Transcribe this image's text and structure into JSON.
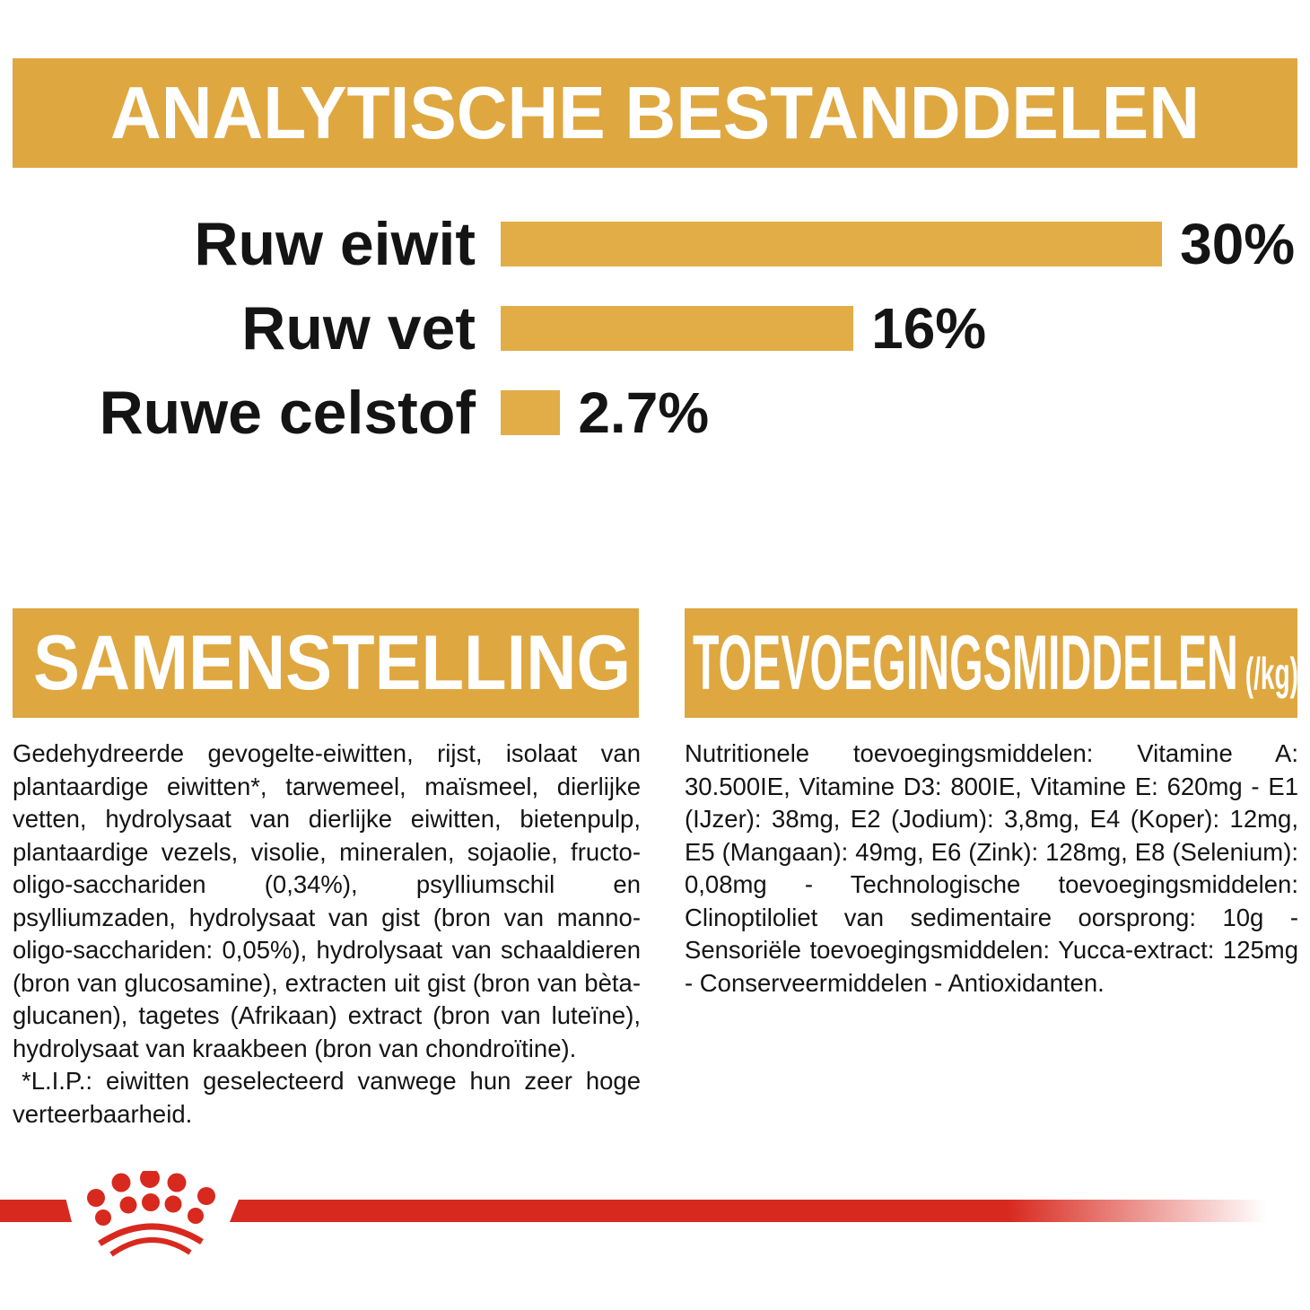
{
  "colors": {
    "banner_gold": "#DFA740",
    "bar_gold": "#E2AC47",
    "brand_red": "#D8291F",
    "text_black": "#141414",
    "background": "#FFFFFF"
  },
  "analytical": {
    "title": "ANALYTISCHE BESTANDDELEN"
  },
  "chart_data": {
    "type": "bar",
    "orientation": "horizontal",
    "title": "ANALYTISCHE BESTANDDELEN",
    "categories": [
      "Ruw eiwit",
      "Ruw vet",
      "Ruwe celstof"
    ],
    "values": [
      30,
      16,
      2.7
    ],
    "value_labels": [
      "30%",
      "16%",
      "2.7%"
    ],
    "unit": "%",
    "xlim": [
      0,
      30
    ],
    "bar_color": "#E2AC47",
    "grid": false,
    "legend": false,
    "value_label_position": "right-of-bar"
  },
  "composition": {
    "title": "SAMENSTELLING",
    "body": "Gedehydreerde gevogelte-eiwitten, rijst, isolaat van plantaardige eiwitten*, tarwemeel, maïsmeel, dierlijke vetten, hydrolysaat van dierlijke eiwitten, bietenpulp, plantaardige vezels, visolie, mineralen, sojaolie, fructo-oligo-sacchariden (0,34%), psylliumschil en psylliumzaden, hydrolysaat van gist (bron van manno-oligo-sacchariden: 0,05%), hydrolysaat van schaaldieren (bron van glucosamine), extracten uit gist (bron van bèta-glucanen), tagetes (Afrikaan) extract (bron van luteïne), hydrolysaat van kraakbeen (bron van chondroïtine).",
    "footnote": "*L.I.P.: eiwitten geselecteerd vanwege hun zeer hoge verteerbaarheid."
  },
  "additives": {
    "title": "TOEVOEGINGSMIDDELEN",
    "unit_suffix": "(/kg)",
    "body": "Nutritionele toevoegingsmiddelen: Vitamine A: 30.500IE, Vitamine D3: 800IE, Vitamine E: 620mg - E1 (IJzer): 38mg, E2 (Jodium): 3,8mg, E4 (Koper): 12mg, E5 (Mangaan): 49mg, E6 (Zink): 128mg, E8 (Selenium): 0,08mg - Technologische toevoegingsmiddelen: Clinoptiloliet van sedimentaire oorsprong: 10g - Sensoriële toevoegingsmiddelen: Yucca-extract: 125mg - Conserveermiddelen - Antioxidanten."
  },
  "footer": {
    "logo": "royal-canin-crown-logo"
  }
}
